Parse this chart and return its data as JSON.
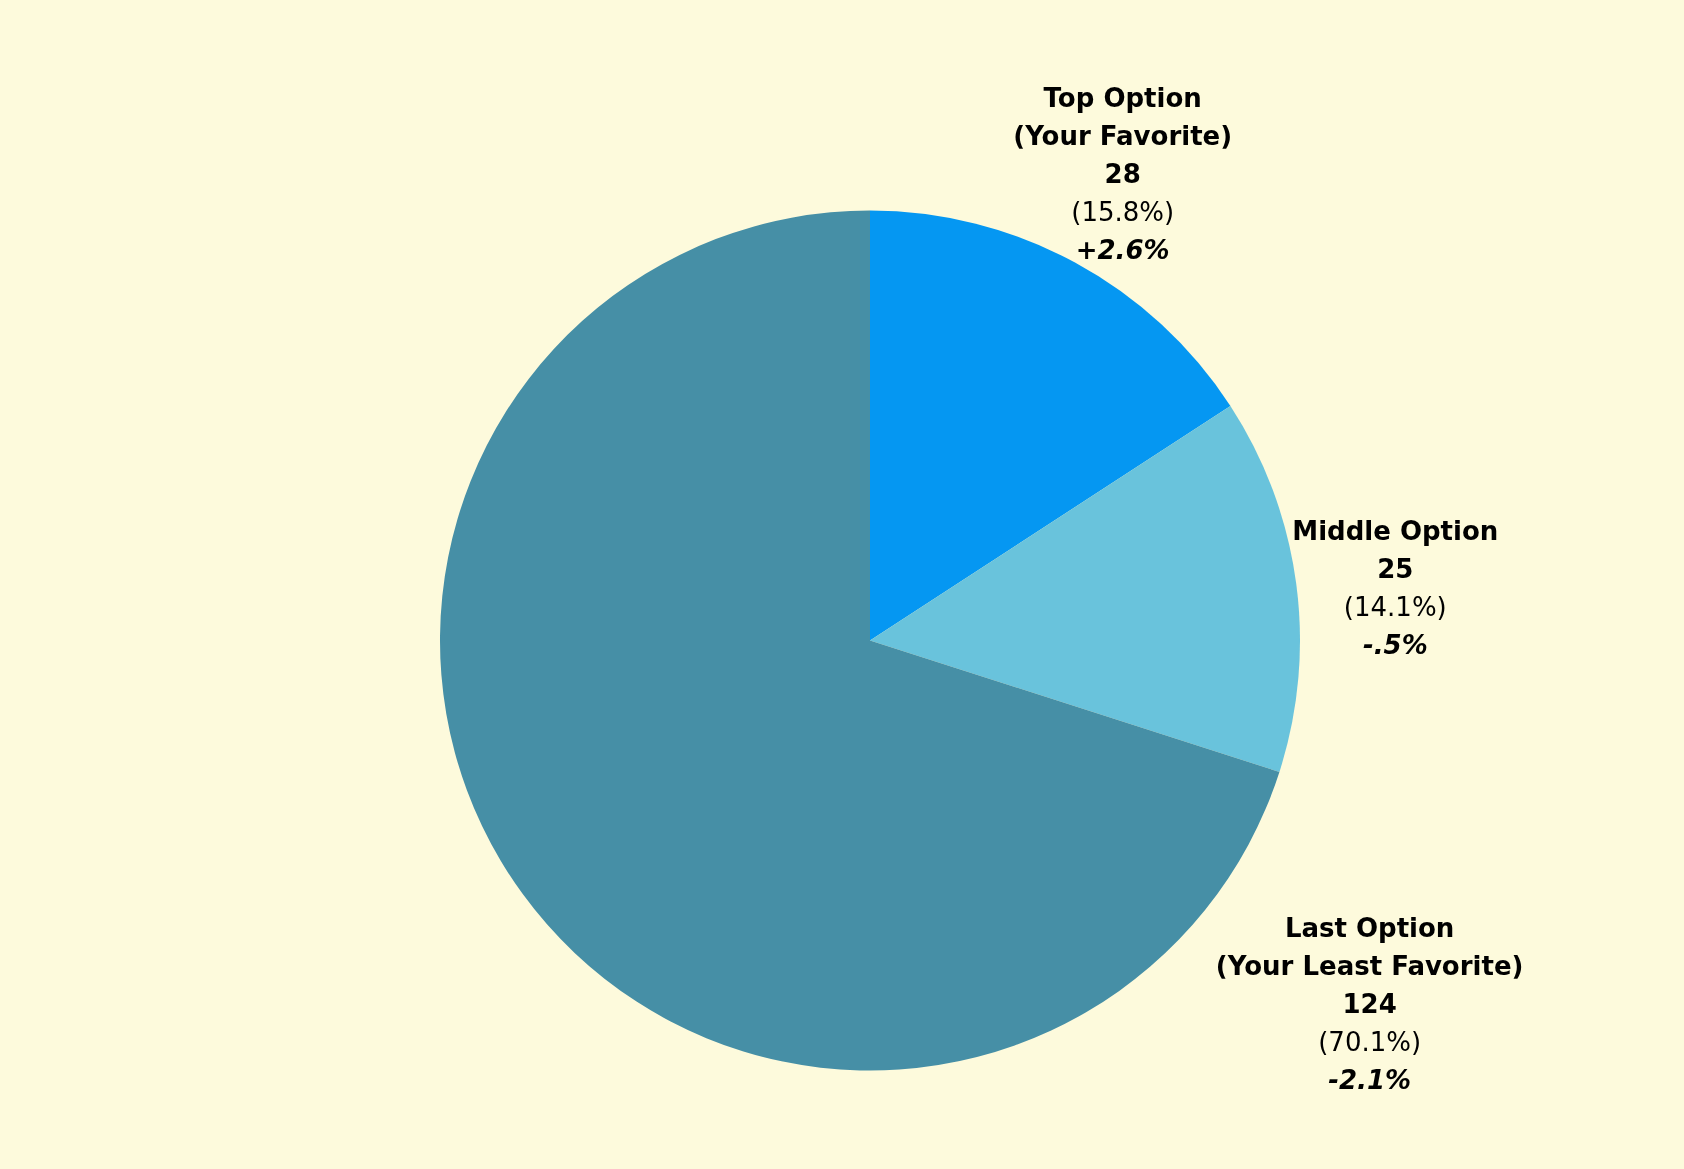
{
  "chart_data": {
    "type": "pie",
    "categories": [
      "Top Option\n(Your Favorite)",
      "Middle Option",
      "Last Option\n(Your Least Favorite)"
    ],
    "values": [
      28,
      25,
      124
    ],
    "colors": [
      "#0597f2",
      "#69c3dc",
      "#468fa6"
    ],
    "data_labels": true,
    "annotations": [
      "(15.8%)",
      "(14.1%)",
      "(70.1%)",
      "+2.6%",
      "-.5%",
      "-2.1%"
    ]
  }
}
